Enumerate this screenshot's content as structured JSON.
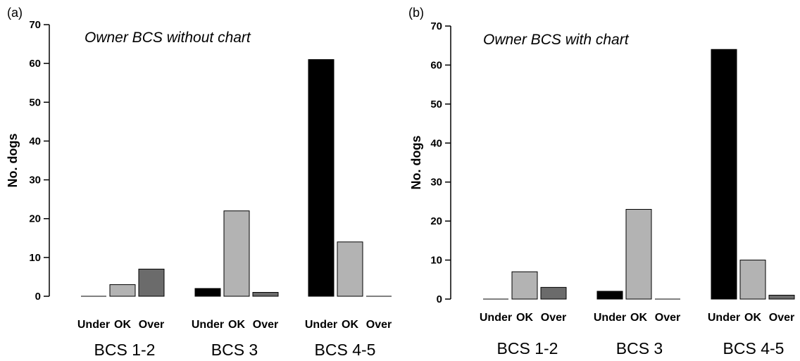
{
  "chart_data": [
    {
      "type": "bar",
      "panel_label": "(a)",
      "title": "Owner BCS without chart",
      "ylabel": "No. dogs",
      "ylim": [
        0,
        70
      ],
      "yticks": [
        0,
        10,
        20,
        30,
        40,
        50,
        60,
        70
      ],
      "groups": [
        "BCS 1-2",
        "BCS 3",
        "BCS 4-5"
      ],
      "categories": [
        "Under",
        "OK",
        "Over"
      ],
      "colors": [
        "#000000",
        "#b3b3b3",
        "#6b6b6b"
      ],
      "values": [
        [
          0,
          3,
          7
        ],
        [
          2,
          22,
          1
        ],
        [
          61,
          14,
          0
        ]
      ]
    },
    {
      "type": "bar",
      "panel_label": "(b)",
      "title": "Owner BCS with chart",
      "ylabel": "No. dogs",
      "ylim": [
        0,
        70
      ],
      "yticks": [
        0,
        10,
        20,
        30,
        40,
        50,
        60,
        70
      ],
      "groups": [
        "BCS 1-2",
        "BCS 3",
        "BCS 4-5"
      ],
      "categories": [
        "Under",
        "OK",
        "Over"
      ],
      "colors": [
        "#000000",
        "#b3b3b3",
        "#6b6b6b"
      ],
      "values": [
        [
          0,
          7,
          3
        ],
        [
          2,
          23,
          0
        ],
        [
          64,
          10,
          1
        ]
      ]
    }
  ]
}
